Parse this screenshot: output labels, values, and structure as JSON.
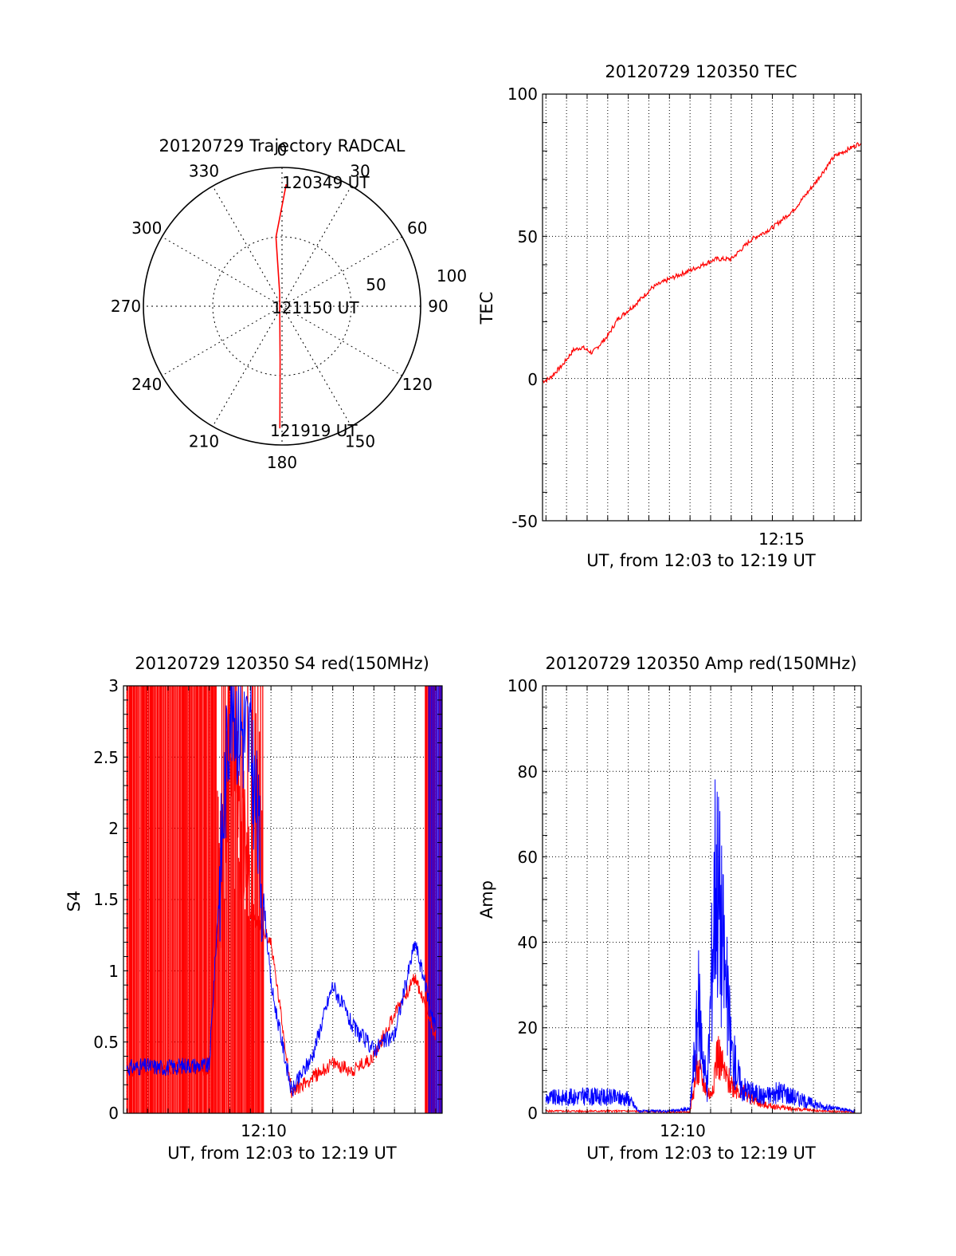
{
  "colors": {
    "red": "#ff0000",
    "blue": "#0000ff",
    "axis": "#000000",
    "grid": "#000000"
  },
  "polar": {
    "title": "20120729 Trajectory RADCAL",
    "angle_labels": [
      "0",
      "30",
      "60",
      "90",
      "120",
      "150",
      "180",
      "210",
      "240",
      "270",
      "300",
      "330"
    ],
    "ring_labels": [
      "50",
      "100"
    ],
    "start_label": "120349 UT",
    "mid_label": "121150 UT",
    "end_label": "121919 UT"
  },
  "tec": {
    "title": "20120729 120350 TEC",
    "ylabel": "TEC",
    "xlabel": "UT, from 12:03 to 12:19 UT",
    "yticks": [
      "100",
      "50",
      "0",
      "-50"
    ],
    "xtick": "12:15"
  },
  "s4": {
    "title": "20120729 120350 S4 red(150MHz)",
    "ylabel": "S4",
    "xlabel": "UT, from 12:03 to 12:19 UT",
    "yticks": [
      "3",
      "2.5",
      "2",
      "1.5",
      "1",
      "0.5",
      "0"
    ],
    "xtick": "12:10"
  },
  "amp": {
    "title": "20120729 120350 Amp red(150MHz)",
    "ylabel": "Amp",
    "xlabel": "UT, from 12:03 to 12:19 UT",
    "yticks": [
      "100",
      "80",
      "60",
      "40",
      "20",
      "0"
    ],
    "xtick": "12:10"
  },
  "chart_data": [
    {
      "type": "scatter",
      "subtype": "polar-trajectory",
      "title": "20120729 Trajectory RADCAL",
      "angle_ticks": [
        0,
        30,
        60,
        90,
        120,
        150,
        180,
        210,
        240,
        270,
        300,
        330
      ],
      "radial_ticks": [
        50,
        100
      ],
      "r_max": 100,
      "series": [
        {
          "color": "red",
          "points": [
            {
              "azimuth": 2,
              "zenith": 88,
              "time": "120349 UT"
            },
            {
              "azimuth": 355,
              "zenith": 50
            },
            {
              "azimuth": 350,
              "zenith": 10,
              "time": "121150 UT"
            },
            {
              "azimuth": 182,
              "zenith": 40
            },
            {
              "azimuth": 181,
              "zenith": 88,
              "time": "121919 UT"
            }
          ]
        }
      ]
    },
    {
      "type": "line",
      "title": "20120729 120350 TEC",
      "xlabel": "UT, from 12:03 to 12:19 UT",
      "ylabel": "TEC",
      "xlim": [
        "12:03:50",
        "12:19:19"
      ],
      "ylim": [
        -50,
        100
      ],
      "grid": true,
      "series": [
        {
          "color": "red",
          "x": [
            "12:03:50",
            "12:04:10",
            "12:04:50",
            "12:05:20",
            "12:05:45",
            "12:06:15",
            "12:07:00",
            "12:07:30",
            "12:08:20",
            "12:09:10",
            "12:10:00",
            "12:11:00",
            "12:12:15",
            "12:13:00",
            "12:14:00",
            "12:15:00",
            "12:16:00",
            "12:17:00",
            "12:18:00",
            "12:19:19"
          ],
          "y": [
            -1,
            0,
            5,
            10,
            11,
            9,
            15,
            21,
            26,
            32,
            35,
            38,
            42,
            42,
            49,
            53,
            59,
            68,
            78,
            83
          ]
        }
      ]
    },
    {
      "type": "line",
      "title": "20120729 120350 S4 red(150MHz)",
      "xlabel": "UT, from 12:03 to 12:19 UT",
      "ylabel": "S4",
      "xlim": [
        "12:03:50",
        "12:19:19"
      ],
      "ylim": [
        0,
        3
      ],
      "grid": true,
      "series": [
        {
          "color": "red",
          "x": [
            "12:04:00",
            "12:05:00",
            "12:06:00",
            "12:07:00",
            "12:08:00",
            "12:09:00",
            "12:10:00",
            "12:11:00",
            "12:12:00",
            "12:13:00",
            "12:14:00",
            "12:15:00",
            "12:16:00",
            "12:17:00",
            "12:18:00",
            "12:19:00"
          ],
          "y": [
            0.3,
            0.32,
            0.3,
            0.33,
            0.3,
            2.8,
            1.4,
            1.2,
            0.15,
            0.25,
            0.35,
            0.3,
            0.4,
            0.7,
            0.95,
            0.55
          ]
        },
        {
          "color": "blue",
          "x": [
            "12:04:00",
            "12:05:00",
            "12:06:00",
            "12:07:00",
            "12:08:00",
            "12:09:00",
            "12:10:00",
            "12:11:00",
            "12:12:00",
            "12:13:00",
            "12:14:00",
            "12:15:00",
            "12:16:00",
            "12:17:00",
            "12:18:00",
            "12:19:00"
          ],
          "y": [
            0.32,
            0.33,
            0.32,
            0.34,
            0.33,
            2.9,
            2.6,
            0.9,
            0.15,
            0.4,
            0.9,
            0.6,
            0.45,
            0.55,
            1.2,
            0.6
          ]
        }
      ]
    },
    {
      "type": "line",
      "title": "20120729 120350 Amp red(150MHz)",
      "xlabel": "UT, from 12:03 to 12:19 UT",
      "ylabel": "Amp",
      "xlim": [
        "12:03:50",
        "12:19:19"
      ],
      "ylim": [
        0,
        100
      ],
      "grid": true,
      "series": [
        {
          "color": "red",
          "x": [
            "12:04:00",
            "12:06:00",
            "12:08:00",
            "12:10:00",
            "12:11:00",
            "12:11:20",
            "12:12:00",
            "12:12:20",
            "12:12:45",
            "12:13:30",
            "12:14:30",
            "12:16:00",
            "12:17:30",
            "12:19:00"
          ],
          "y": [
            0.5,
            0.5,
            0.5,
            0.3,
            0.3,
            10,
            4,
            14,
            8,
            5,
            2,
            1,
            0.5,
            0.3
          ]
        },
        {
          "color": "blue",
          "x": [
            "12:04:00",
            "12:06:00",
            "12:08:00",
            "12:08:30",
            "12:10:00",
            "12:11:00",
            "12:11:25",
            "12:11:50",
            "12:12:15",
            "12:12:30",
            "12:13:00",
            "12:13:30",
            "12:14:30",
            "12:15:30",
            "12:16:30",
            "12:17:30",
            "12:19:00"
          ],
          "y": [
            3.5,
            4,
            3.5,
            0.5,
            0.5,
            1,
            25,
            5,
            60,
            45,
            15,
            6,
            4,
            5,
            3,
            1.5,
            0.5
          ]
        }
      ]
    }
  ]
}
